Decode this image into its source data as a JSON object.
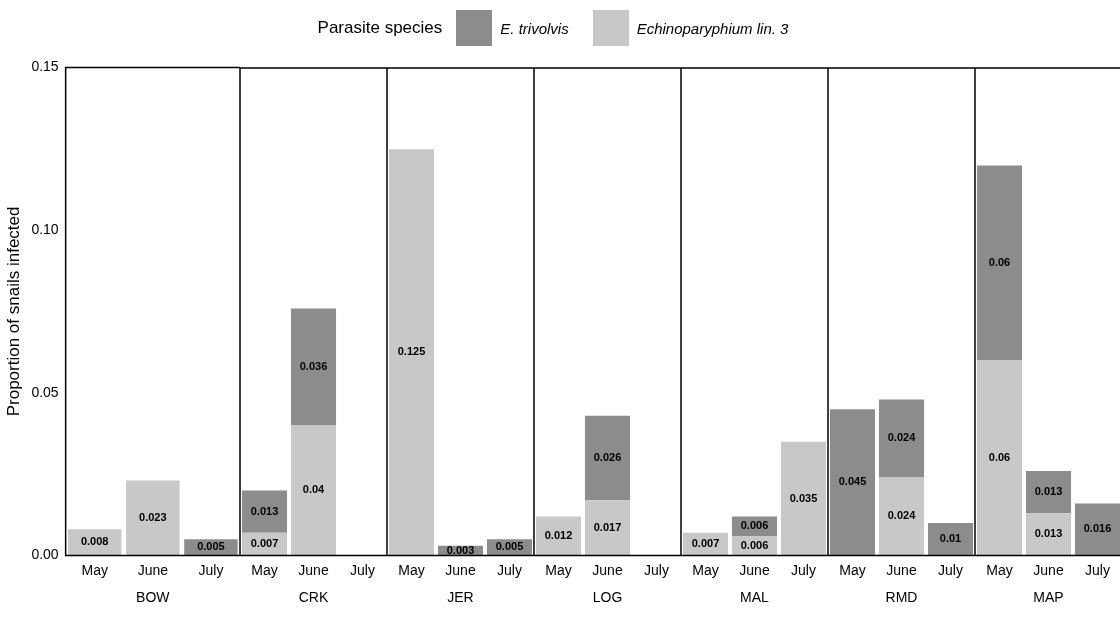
{
  "chart_data": [
    {
      "type": "bar",
      "stacked": true,
      "xlabel": "BOW",
      "ylabel": "Proportion of snails infected",
      "legend": "top",
      "legend_title": "Parasite species",
      "data_labels": true,
      "categories": [
        "May",
        "June",
        "July"
      ],
      "ylim": [
        0,
        0.15
      ],
      "yticks": [
        {
          "value": 0,
          "label": "0.00"
        },
        {
          "value": 0.05,
          "label": "0.05"
        },
        {
          "value": 0.1,
          "label": "0.10"
        },
        {
          "value": 0.15,
          "label": "0.15"
        }
      ],
      "series": [
        {
          "name": "Echinoparyphium lin. 3",
          "color": "#c8c8c8",
          "values": [
            0.008,
            0.023,
            null
          ]
        },
        {
          "name": "E. trivolvis",
          "color": "#8c8c8c",
          "values": [
            null,
            null,
            0.005
          ]
        }
      ]
    },
    {
      "type": "bar",
      "stacked": true,
      "xlabel": "CRK",
      "data_labels": true,
      "tick_labels": "x",
      "categories": [
        "May",
        "June",
        "July"
      ],
      "ylim": [
        0,
        0.15
      ],
      "series": [
        {
          "color": "#c8c8c8",
          "values": [
            0.007,
            0.04,
            null
          ]
        },
        {
          "color": "#8c8c8c",
          "values": [
            0.013,
            0.036,
            null
          ]
        }
      ]
    },
    {
      "type": "bar",
      "stacked": true,
      "xlabel": "JER",
      "data_labels": true,
      "tick_labels": "x",
      "categories": [
        "May",
        "June",
        "July"
      ],
      "ylim": [
        0,
        0.15
      ],
      "series": [
        {
          "color": "#c8c8c8",
          "values": [
            0.125,
            null,
            null
          ]
        },
        {
          "color": "#8c8c8c",
          "values": [
            null,
            0.003,
            0.005
          ]
        }
      ]
    },
    {
      "type": "bar",
      "stacked": true,
      "xlabel": "LOG",
      "data_labels": true,
      "tick_labels": "x",
      "categories": [
        "May",
        "June",
        "July"
      ],
      "ylim": [
        0,
        0.15
      ],
      "series": [
        {
          "color": "#c8c8c8",
          "values": [
            0.012,
            0.017,
            null
          ]
        },
        {
          "color": "#8c8c8c",
          "values": [
            null,
            0.026,
            null
          ]
        }
      ]
    },
    {
      "type": "bar",
      "stacked": true,
      "xlabel": "MAL",
      "data_labels": true,
      "tick_labels": "x",
      "categories": [
        "May",
        "June",
        "July"
      ],
      "ylim": [
        0,
        0.15
      ],
      "series": [
        {
          "color": "#c8c8c8",
          "values": [
            0.007,
            0.006,
            0.035
          ]
        },
        {
          "color": "#8c8c8c",
          "values": [
            null,
            0.006,
            null
          ]
        }
      ]
    },
    {
      "type": "bar",
      "stacked": true,
      "xlabel": "RMD",
      "data_labels": true,
      "tick_labels": "x",
      "categories": [
        "May",
        "June",
        "July"
      ],
      "ylim": [
        0,
        0.15
      ],
      "series": [
        {
          "color": "#c8c8c8",
          "values": [
            null,
            0.024,
            null
          ]
        },
        {
          "color": "#8c8c8c",
          "values": [
            0.045,
            0.024,
            0.01
          ]
        }
      ]
    },
    {
      "type": "bar",
      "stacked": true,
      "xlabel": "MAP",
      "data_labels": true,
      "tick_labels": "x",
      "categories": [
        "May",
        "June",
        "July"
      ],
      "ylim": [
        0,
        0.15
      ],
      "series": [
        {
          "color": "#c8c8c8",
          "values": [
            0.06,
            0.013,
            null
          ]
        },
        {
          "color": "#8c8c8c",
          "values": [
            0.06,
            0.013,
            0.016
          ]
        }
      ]
    }
  ]
}
